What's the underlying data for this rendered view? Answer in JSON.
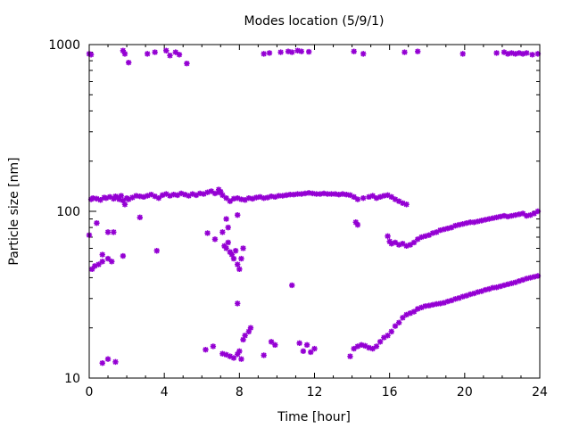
{
  "chart_data": {
    "type": "scatter",
    "title": "Modes location (5/9/1)",
    "xlabel": "Time [hour]",
    "ylabel": "Particle size [nm]",
    "xlim": [
      0,
      24
    ],
    "ylim": [
      10,
      1000
    ],
    "yscale": "log",
    "grid": false,
    "legend": "none",
    "marker_color": "#9400d3",
    "x_ticks": [
      0,
      4,
      8,
      12,
      16,
      20,
      24
    ],
    "x_tick_labels": [
      "0",
      "4",
      "8",
      "12",
      "16",
      "20",
      "24"
    ],
    "y_ticks": [
      10,
      100,
      1000
    ],
    "y_tick_labels": [
      "10",
      "100",
      "1000"
    ],
    "series": [
      {
        "points": [
          [
            0.0,
            72
          ],
          [
            0.1,
            118
          ],
          [
            0.15,
            45
          ],
          [
            0.2,
            120
          ],
          [
            0.3,
            47
          ],
          [
            0.4,
            119
          ],
          [
            0.5,
            48
          ],
          [
            0.6,
            117
          ],
          [
            0.7,
            55
          ],
          [
            0.8,
            121
          ],
          [
            0.9,
            120
          ],
          [
            1.0,
            52
          ],
          [
            1.0,
            75
          ],
          [
            1.1,
            122
          ],
          [
            1.2,
            50
          ],
          [
            1.3,
            119
          ],
          [
            1.4,
            123
          ],
          [
            1.5,
            121
          ],
          [
            1.6,
            118
          ],
          [
            1.7,
            124
          ],
          [
            1.8,
            116
          ],
          [
            1.9,
            110
          ],
          [
            2.0,
            120
          ],
          [
            2.1,
            118
          ],
          [
            2.3,
            121
          ],
          [
            2.5,
            124
          ],
          [
            2.7,
            123
          ],
          [
            2.9,
            122
          ],
          [
            3.1,
            124
          ],
          [
            3.3,
            126
          ],
          [
            3.5,
            123
          ],
          [
            3.6,
            58
          ],
          [
            3.7,
            120
          ],
          [
            3.9,
            125
          ],
          [
            4.1,
            127
          ],
          [
            4.3,
            124
          ],
          [
            4.5,
            126
          ],
          [
            4.7,
            125
          ],
          [
            4.9,
            128
          ],
          [
            5.1,
            126
          ],
          [
            5.3,
            124
          ],
          [
            5.5,
            127
          ],
          [
            5.7,
            125
          ],
          [
            5.9,
            128
          ],
          [
            6.1,
            127
          ],
          [
            6.3,
            130
          ],
          [
            6.5,
            132
          ],
          [
            6.7,
            128
          ],
          [
            6.9,
            130
          ],
          [
            7.1,
            125
          ],
          [
            7.3,
            120
          ],
          [
            7.5,
            115
          ],
          [
            7.7,
            119
          ],
          [
            7.9,
            120
          ],
          [
            8.1,
            118
          ],
          [
            8.3,
            117
          ],
          [
            8.5,
            120
          ],
          [
            8.7,
            119
          ],
          [
            8.9,
            121
          ],
          [
            9.1,
            122
          ],
          [
            9.3,
            120
          ],
          [
            9.5,
            121
          ],
          [
            9.7,
            123
          ],
          [
            9.9,
            122
          ],
          [
            10.1,
            124
          ],
          [
            10.3,
            124
          ],
          [
            10.5,
            125
          ],
          [
            10.7,
            126
          ],
          [
            10.9,
            126
          ],
          [
            11.1,
            127
          ],
          [
            11.3,
            127
          ],
          [
            11.5,
            128
          ],
          [
            11.7,
            129
          ],
          [
            11.9,
            128
          ],
          [
            12.1,
            127
          ],
          [
            12.3,
            127
          ],
          [
            12.5,
            128
          ],
          [
            12.7,
            127
          ],
          [
            12.9,
            127
          ],
          [
            13.1,
            127
          ],
          [
            13.3,
            126
          ],
          [
            13.5,
            127
          ],
          [
            13.7,
            126
          ],
          [
            13.9,
            125
          ],
          [
            14.1,
            122
          ],
          [
            14.3,
            118
          ],
          [
            14.6,
            120
          ],
          [
            14.9,
            122
          ],
          [
            15.1,
            124
          ],
          [
            15.3,
            120
          ],
          [
            15.5,
            122
          ],
          [
            15.7,
            124
          ],
          [
            15.9,
            125
          ],
          [
            16.1,
            122
          ],
          [
            16.3,
            118
          ],
          [
            16.5,
            115
          ],
          [
            16.7,
            112
          ],
          [
            16.9,
            110
          ],
          [
            14.2,
            86
          ],
          [
            14.3,
            83
          ],
          [
            15.9,
            71
          ],
          [
            16.0,
            66
          ],
          [
            16.1,
            64
          ],
          [
            16.3,
            65
          ],
          [
            16.5,
            63
          ],
          [
            16.7,
            64
          ],
          [
            16.9,
            62
          ],
          [
            17.1,
            63
          ],
          [
            17.3,
            65
          ],
          [
            17.5,
            68
          ],
          [
            17.7,
            70
          ],
          [
            17.9,
            71
          ],
          [
            18.1,
            72
          ],
          [
            18.3,
            74
          ],
          [
            18.5,
            75
          ],
          [
            18.7,
            77
          ],
          [
            18.9,
            78
          ],
          [
            19.1,
            79
          ],
          [
            19.3,
            80
          ],
          [
            19.5,
            82
          ],
          [
            19.7,
            83
          ],
          [
            19.9,
            84
          ],
          [
            20.1,
            85
          ],
          [
            20.3,
            86
          ],
          [
            20.5,
            86
          ],
          [
            20.7,
            87
          ],
          [
            20.9,
            88
          ],
          [
            21.1,
            89
          ],
          [
            21.3,
            90
          ],
          [
            21.5,
            91
          ],
          [
            21.7,
            92
          ],
          [
            21.9,
            93
          ],
          [
            22.1,
            94
          ],
          [
            22.3,
            93
          ],
          [
            22.5,
            94
          ],
          [
            22.7,
            95
          ],
          [
            22.9,
            96
          ],
          [
            23.1,
            97
          ],
          [
            23.3,
            94
          ],
          [
            23.5,
            95
          ],
          [
            23.7,
            97
          ],
          [
            23.9,
            100
          ],
          [
            6.3,
            74
          ],
          [
            6.7,
            68
          ],
          [
            7.1,
            75
          ],
          [
            7.2,
            62
          ],
          [
            7.3,
            60
          ],
          [
            7.4,
            65
          ],
          [
            7.5,
            57
          ],
          [
            7.6,
            55
          ],
          [
            7.7,
            52
          ],
          [
            7.8,
            58
          ],
          [
            7.9,
            48
          ],
          [
            8.0,
            45
          ],
          [
            8.1,
            52
          ],
          [
            8.2,
            60
          ],
          [
            7.3,
            90
          ],
          [
            7.4,
            80
          ],
          [
            7.9,
            95
          ],
          [
            6.9,
            135
          ],
          [
            7.0,
            131
          ],
          [
            2.7,
            92
          ],
          [
            1.3,
            75
          ],
          [
            0.4,
            85
          ],
          [
            1.8,
            54
          ],
          [
            0.7,
            50
          ],
          [
            0.0,
            880
          ],
          [
            0.1,
            870
          ],
          [
            1.8,
            920
          ],
          [
            1.9,
            880
          ],
          [
            2.1,
            780
          ],
          [
            3.1,
            880
          ],
          [
            3.5,
            900
          ],
          [
            4.1,
            920
          ],
          [
            4.3,
            860
          ],
          [
            4.6,
            900
          ],
          [
            4.8,
            870
          ],
          [
            5.2,
            770
          ],
          [
            9.3,
            880
          ],
          [
            9.6,
            890
          ],
          [
            10.2,
            900
          ],
          [
            10.6,
            910
          ],
          [
            10.8,
            900
          ],
          [
            11.1,
            920
          ],
          [
            11.3,
            910
          ],
          [
            11.7,
            905
          ],
          [
            14.1,
            910
          ],
          [
            14.6,
            880
          ],
          [
            16.8,
            900
          ],
          [
            17.5,
            910
          ],
          [
            19.9,
            880
          ],
          [
            21.7,
            890
          ],
          [
            22.1,
            900
          ],
          [
            22.3,
            880
          ],
          [
            22.5,
            890
          ],
          [
            22.7,
            880
          ],
          [
            22.9,
            890
          ],
          [
            23.1,
            880
          ],
          [
            23.3,
            890
          ],
          [
            23.6,
            870
          ],
          [
            23.9,
            880
          ],
          [
            0.7,
            12.3
          ],
          [
            1.0,
            13.0
          ],
          [
            1.4,
            12.5
          ],
          [
            6.2,
            14.8
          ],
          [
            6.6,
            15.5
          ],
          [
            7.1,
            14.0
          ],
          [
            7.3,
            13.8
          ],
          [
            7.5,
            13.5
          ],
          [
            7.7,
            13.2
          ],
          [
            7.9,
            13.9
          ],
          [
            8.0,
            14.5
          ],
          [
            8.1,
            13.0
          ],
          [
            8.2,
            17.0
          ],
          [
            8.3,
            18.0
          ],
          [
            8.5,
            19.0
          ],
          [
            8.6,
            20.0
          ],
          [
            7.9,
            28.0
          ],
          [
            9.3,
            13.7
          ],
          [
            9.7,
            16.5
          ],
          [
            9.9,
            15.8
          ],
          [
            10.8,
            36.0
          ],
          [
            11.2,
            16.2
          ],
          [
            11.4,
            14.5
          ],
          [
            11.6,
            15.8
          ],
          [
            11.8,
            14.3
          ],
          [
            12.0,
            15.0
          ],
          [
            13.9,
            13.5
          ],
          [
            14.1,
            15.0
          ],
          [
            14.3,
            15.5
          ],
          [
            14.5,
            15.8
          ],
          [
            14.7,
            15.6
          ],
          [
            14.9,
            15.2
          ],
          [
            15.1,
            15.0
          ],
          [
            15.3,
            15.5
          ],
          [
            15.5,
            16.5
          ],
          [
            15.7,
            17.5
          ],
          [
            15.9,
            18.0
          ],
          [
            16.1,
            19.0
          ],
          [
            16.3,
            20.5
          ],
          [
            16.5,
            21.5
          ],
          [
            16.7,
            23.0
          ],
          [
            16.9,
            24.0
          ],
          [
            17.1,
            24.5
          ],
          [
            17.3,
            25.0
          ],
          [
            17.5,
            26.0
          ],
          [
            17.7,
            26.5
          ],
          [
            17.9,
            27.0
          ],
          [
            18.1,
            27.2
          ],
          [
            18.3,
            27.5
          ],
          [
            18.5,
            27.8
          ],
          [
            18.7,
            28.0
          ],
          [
            18.9,
            28.3
          ],
          [
            19.1,
            28.8
          ],
          [
            19.3,
            29.2
          ],
          [
            19.5,
            29.8
          ],
          [
            19.7,
            30.2
          ],
          [
            19.9,
            30.8
          ],
          [
            20.1,
            31.2
          ],
          [
            20.3,
            31.8
          ],
          [
            20.5,
            32.2
          ],
          [
            20.7,
            32.8
          ],
          [
            20.9,
            33.2
          ],
          [
            21.1,
            33.8
          ],
          [
            21.3,
            34.2
          ],
          [
            21.5,
            34.8
          ],
          [
            21.7,
            35.0
          ],
          [
            21.9,
            35.5
          ],
          [
            22.1,
            36.0
          ],
          [
            22.3,
            36.5
          ],
          [
            22.5,
            37.0
          ],
          [
            22.7,
            37.5
          ],
          [
            22.9,
            38.2
          ],
          [
            23.1,
            38.8
          ],
          [
            23.3,
            39.5
          ],
          [
            23.5,
            40.0
          ],
          [
            23.7,
            40.5
          ],
          [
            23.9,
            41.0
          ]
        ]
      }
    ]
  }
}
